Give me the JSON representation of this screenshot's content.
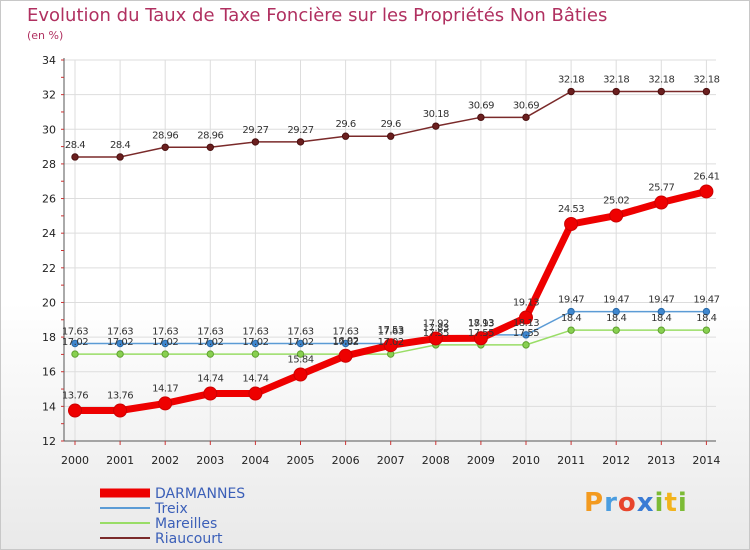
{
  "title": "Evolution du Taux de Taxe Foncière sur les Propriétés Non Bâties",
  "unit": "(en %)",
  "logo": "Proxiti",
  "chart_data": {
    "type": "line",
    "title": "Evolution du Taux de Taxe Foncière sur les Propriétés Non Bâties",
    "ylabel": "(en %)",
    "xlabel": "",
    "ylim": [
      12,
      34
    ],
    "yticks": [
      "12",
      "14",
      "16",
      "18",
      "20",
      "22",
      "24",
      "26",
      "28",
      "30",
      "32",
      "34"
    ],
    "categories": [
      "2000",
      "2001",
      "2002",
      "2003",
      "2004",
      "2005",
      "2006",
      "2007",
      "2008",
      "2009",
      "2010",
      "2011",
      "2012",
      "2013",
      "2014"
    ],
    "grid": true,
    "legend_position": "bottom-left",
    "series": [
      {
        "name": "DARMANNES",
        "color": "#ee0000",
        "values": [
          13.76,
          13.76,
          14.17,
          14.74,
          14.74,
          15.84,
          16.92,
          17.53,
          17.92,
          17.93,
          19.13,
          24.53,
          25.02,
          25.77,
          26.41
        ],
        "labels": [
          "13.76",
          "13.76",
          "14.17",
          "14.74",
          "14.74",
          "15.84",
          "16.92",
          "17.53",
          "17.92",
          "17.93",
          "19.13",
          "24.53",
          "25.02",
          "25.77",
          "26.41"
        ]
      },
      {
        "name": "Treix",
        "color": "#5b9bd5",
        "values": [
          17.63,
          17.63,
          17.63,
          17.63,
          17.63,
          17.63,
          17.63,
          17.63,
          17.83,
          18.13,
          18.13,
          19.47,
          19.47,
          19.47,
          19.47
        ],
        "labels": [
          "17.63",
          "17.63",
          "17.63",
          "17.63",
          "17.63",
          "17.63",
          "17.63",
          "17.63",
          "17.83",
          "18.13",
          "18.13",
          "19.47",
          "19.47",
          "19.47",
          "19.47"
        ]
      },
      {
        "name": "Mareilles",
        "color": "#99dd66",
        "values": [
          17.02,
          17.02,
          17.02,
          17.02,
          17.02,
          17.02,
          17.02,
          17.02,
          17.55,
          17.55,
          17.55,
          18.4,
          18.4,
          18.4,
          18.4
        ],
        "labels": [
          "17.02",
          "17.02",
          "17.02",
          "17.02",
          "17.02",
          "17.02",
          "17.02",
          "17.02",
          "17.55",
          "17.55",
          "17.55",
          "18.4",
          "18.4",
          "18.4",
          "18.4"
        ]
      },
      {
        "name": "Riaucourt",
        "color": "#7a2a2a",
        "values": [
          28.4,
          28.4,
          28.96,
          28.96,
          29.27,
          29.27,
          29.6,
          29.6,
          30.18,
          30.69,
          30.69,
          32.18,
          32.18,
          32.18,
          32.18
        ],
        "labels": [
          "28.4",
          "28.4",
          "28.96",
          "28.96",
          "29.27",
          "29.27",
          "29.6",
          "29.6",
          "30.18",
          "30.69",
          "30.69",
          "32.18",
          "32.18",
          "32.18",
          "32.18"
        ]
      }
    ]
  }
}
